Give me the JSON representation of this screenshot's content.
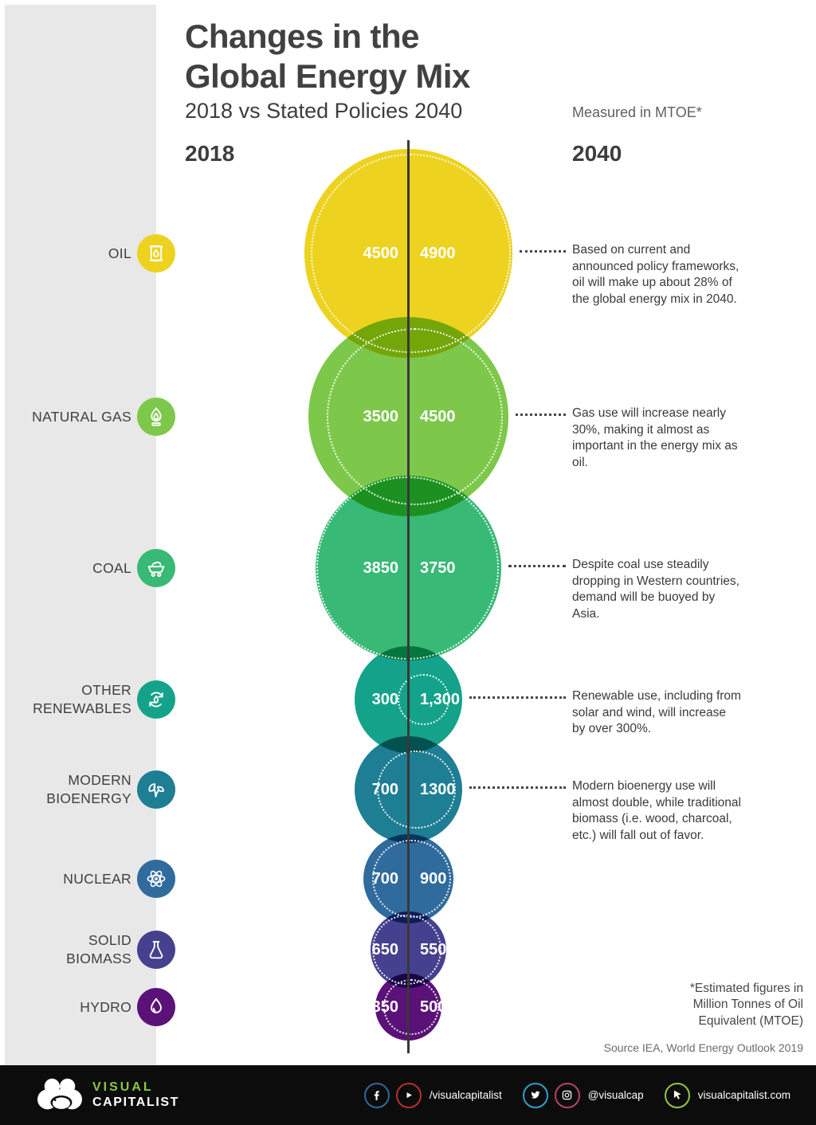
{
  "header": {
    "title_line1": "Changes in the",
    "title_line2": "Global Energy Mix",
    "subtitle": "2018 vs Stated Policies 2040",
    "unit_note": "Measured in MTOE*"
  },
  "chart_data": {
    "type": "bubble-comparison",
    "columns": {
      "left": "2018",
      "right": "2040"
    },
    "unit": "MTOE (Million Tonnes of Oil Equivalent)",
    "rows": [
      {
        "category": "OIL",
        "icon": "oil-barrel-icon",
        "color": "#edd21f",
        "value_2018": 4500,
        "value_2040": 4900,
        "label_2018": "4500",
        "label_2040": "4900",
        "annotation": "Based on current and announced policy frameworks, oil will make up about 28% of the global energy mix in 2040."
      },
      {
        "category": "NATURAL GAS",
        "icon": "gas-flame-icon",
        "color": "#7dc84a",
        "value_2018": 3500,
        "value_2040": 4500,
        "label_2018": "3500",
        "label_2040": "4500",
        "annotation": "Gas use will increase nearly 30%, making it almost as important in the energy mix as oil."
      },
      {
        "category": "COAL",
        "icon": "coal-cart-icon",
        "color": "#38b975",
        "value_2018": 3850,
        "value_2040": 3750,
        "label_2018": "3850",
        "label_2040": "3750",
        "annotation": "Despite coal use steadily dropping in Western countries, demand will be buoyed by Asia."
      },
      {
        "category": "OTHER RENEWABLES",
        "icon": "renewables-cycle-icon",
        "color": "#14a38a",
        "value_2018": 300,
        "value_2040": 1300,
        "label_2018": "300",
        "label_2040": "1,300",
        "annotation": "Renewable use, including from solar and wind, will increase by over 300%."
      },
      {
        "category": "MODERN BIOENERGY",
        "icon": "bioenergy-leaves-icon",
        "color": "#1e7e93",
        "value_2018": 700,
        "value_2040": 1300,
        "label_2018": "700",
        "label_2040": "1300",
        "annotation": "Modern bioenergy use will almost double, while traditional biomass (i.e. wood, charcoal, etc.) will fall out of favor."
      },
      {
        "category": "NUCLEAR",
        "icon": "atom-icon",
        "color": "#306b9d",
        "value_2018": 700,
        "value_2040": 900,
        "label_2018": "700",
        "label_2040": "900",
        "annotation": ""
      },
      {
        "category": "SOLID BIOMASS",
        "icon": "flask-icon",
        "color": "#46418f",
        "value_2018": 650,
        "value_2040": 550,
        "label_2018": "650",
        "label_2040": "550",
        "annotation": ""
      },
      {
        "category": "HYDRO",
        "icon": "water-drop-icon",
        "color": "#5a1278",
        "value_2018": 350,
        "value_2040": 500,
        "label_2018": "350",
        "label_2040": "500",
        "annotation": ""
      }
    ]
  },
  "footnotes": {
    "estimate": "*Estimated figures in Million Tonnes of Oil Equivalent (MTOE)",
    "source": "Source IEA, World Energy Outlook 2019"
  },
  "footer": {
    "brand_line1": "VISUAL",
    "brand_line2": "CAPITALIST",
    "brand_color": "#8dc63f",
    "social_groups": [
      {
        "icons": [
          "facebook-icon",
          "youtube-icon"
        ],
        "label": "/visualcapitalist"
      },
      {
        "icons": [
          "twitter-icon",
          "instagram-icon"
        ],
        "label": "@visualcap"
      },
      {
        "icons": [
          "cursor-icon"
        ],
        "label": "visualcapitalist.com"
      }
    ]
  }
}
